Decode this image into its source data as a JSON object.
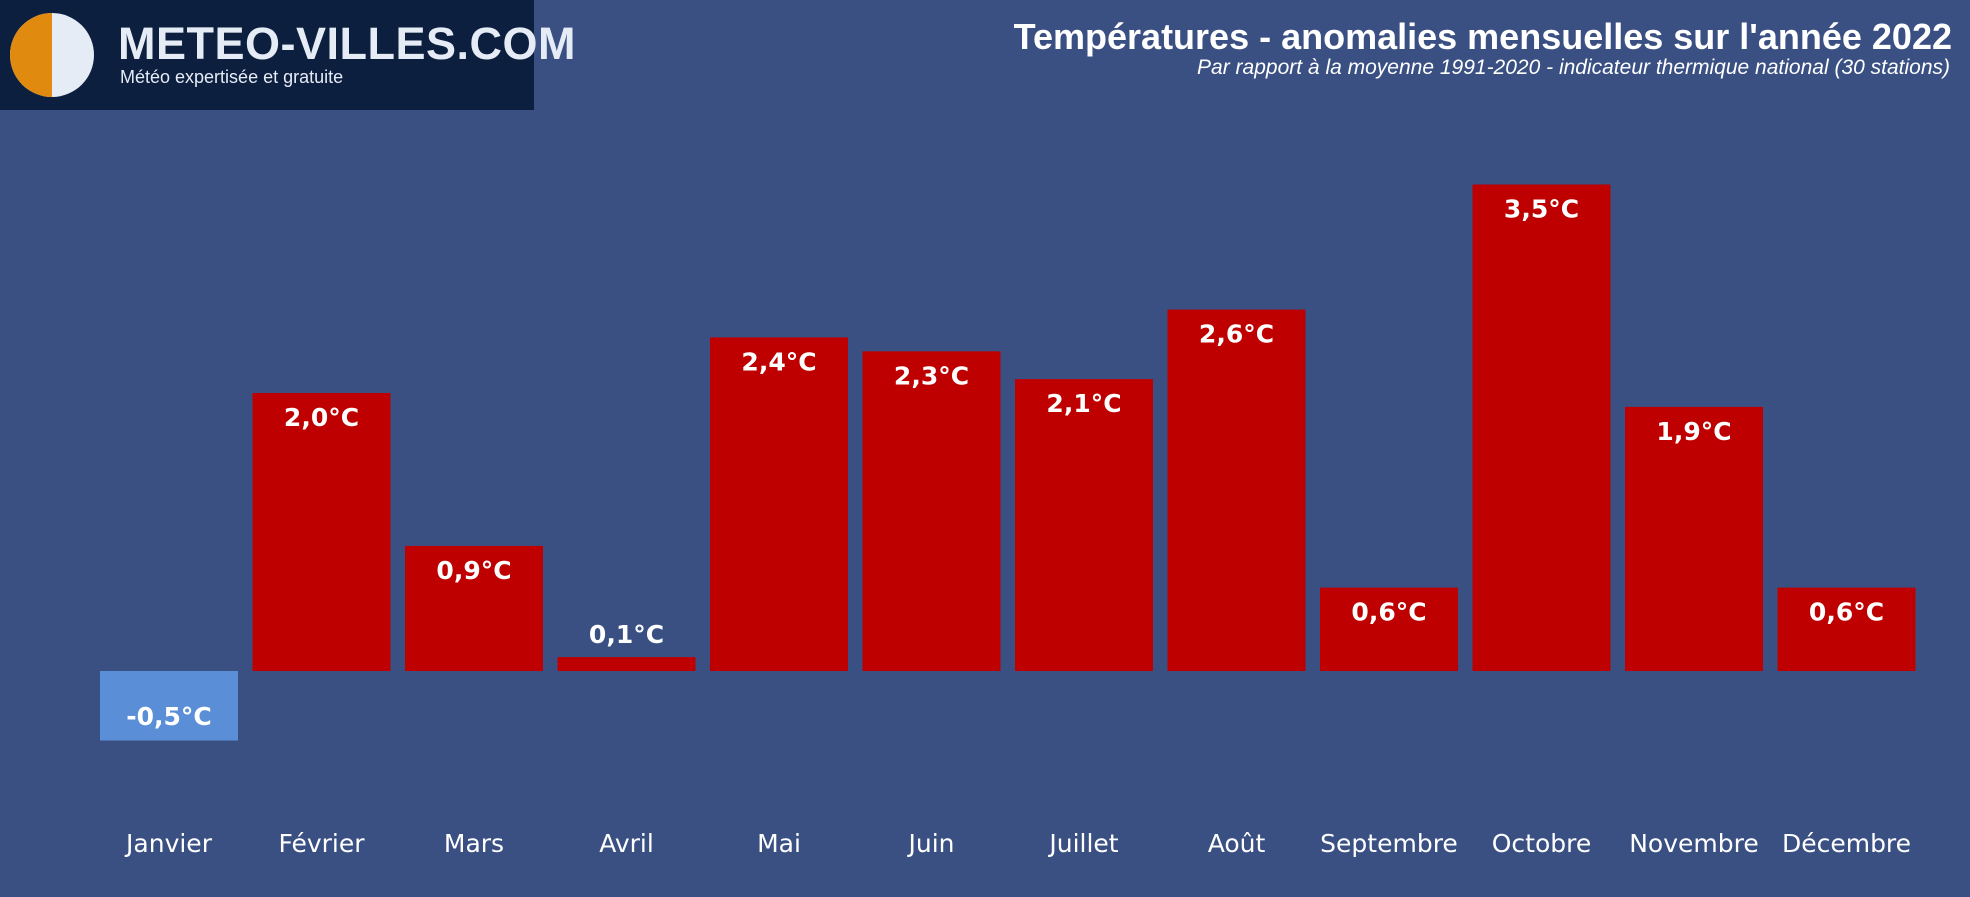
{
  "brand": {
    "name": "METEO-VILLES.COM",
    "tagline": "Météo expertisée et gratuite"
  },
  "colors": {
    "background": "#3a5083",
    "positive": "#bf0000",
    "negative": "#5a8fd8",
    "logo_bg": "#0d1f3f",
    "logo_orange": "#e08a10",
    "logo_light": "#e6ecf6"
  },
  "chart_data": {
    "type": "bar",
    "title": "Températures - anomalies mensuelles sur l'année 2022",
    "subtitle": "Par rapport à la moyenne 1991-2020 - indicateur thermique national (30 stations)",
    "categories": [
      "Janvier",
      "Février",
      "Mars",
      "Avril",
      "Mai",
      "Juin",
      "Juillet",
      "Août",
      "Septembre",
      "Octobre",
      "Novembre",
      "Décembre"
    ],
    "values": [
      -0.5,
      2.0,
      0.9,
      0.1,
      2.4,
      2.3,
      2.1,
      2.6,
      0.6,
      3.5,
      1.9,
      0.6
    ],
    "labels": [
      "-0,5°C",
      "2,0°C",
      "0,9°C",
      "0,1°C",
      "2,4°C",
      "2,3°C",
      "2,1°C",
      "2,6°C",
      "0,6°C",
      "3,5°C",
      "1,9°C",
      "0,6°C"
    ],
    "unit": "°C",
    "xlabel": "",
    "ylabel": "",
    "grid": false,
    "legend": "none"
  }
}
